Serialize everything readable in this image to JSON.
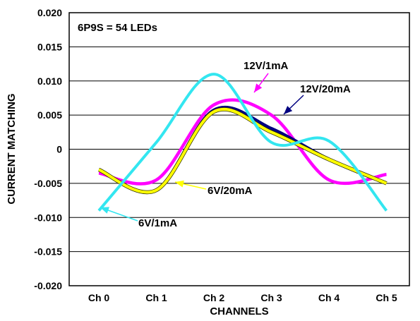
{
  "chart_data": {
    "type": "line",
    "categories": [
      "Ch 0",
      "Ch 1",
      "Ch 2",
      "Ch 3",
      "Ch 4",
      "Ch 5"
    ],
    "xlabel": "CHANNELS",
    "ylabel": "CURRENT MATCHING",
    "ylim": [
      -0.02,
      0.02
    ],
    "yticks": [
      0.02,
      0.015,
      0.01,
      0.005,
      0,
      -0.005,
      -0.01,
      -0.015,
      -0.02
    ],
    "ytick_labels": [
      "0.020",
      "0.015",
      "0.010",
      "0.005",
      "0",
      "-0.005",
      "-0.010",
      "-0.015",
      "-0.020"
    ],
    "grid": "horizontal",
    "inset_label": "6P9S = 54 LEDs",
    "series": [
      {
        "name": "12V/1mA",
        "color": "#ff00ff",
        "values": [
          -0.0035,
          -0.0045,
          0.0065,
          0.005,
          -0.0045,
          -0.0037
        ]
      },
      {
        "name": "12V/20mA",
        "color": "#000080",
        "values": [
          -0.003,
          -0.006,
          0.0057,
          0.003,
          -0.0015,
          -0.005
        ]
      },
      {
        "name": "6V/20mA",
        "color": "#ffff00",
        "values": [
          -0.003,
          -0.006,
          0.0055,
          0.0025,
          -0.0015,
          -0.005
        ]
      },
      {
        "name": "6V/1mA",
        "color": "#33e6f0",
        "values": [
          -0.009,
          0.001,
          0.011,
          0.001,
          0.0012,
          -0.009
        ]
      }
    ],
    "annotations": [
      {
        "text": "12V/1mA",
        "series": "12V/1mA"
      },
      {
        "text": "12V/20mA",
        "series": "12V/20mA"
      },
      {
        "text": "6V/20mA",
        "series": "6V/20mA"
      },
      {
        "text": "6V/1mA",
        "series": "6V/1mA"
      }
    ]
  }
}
